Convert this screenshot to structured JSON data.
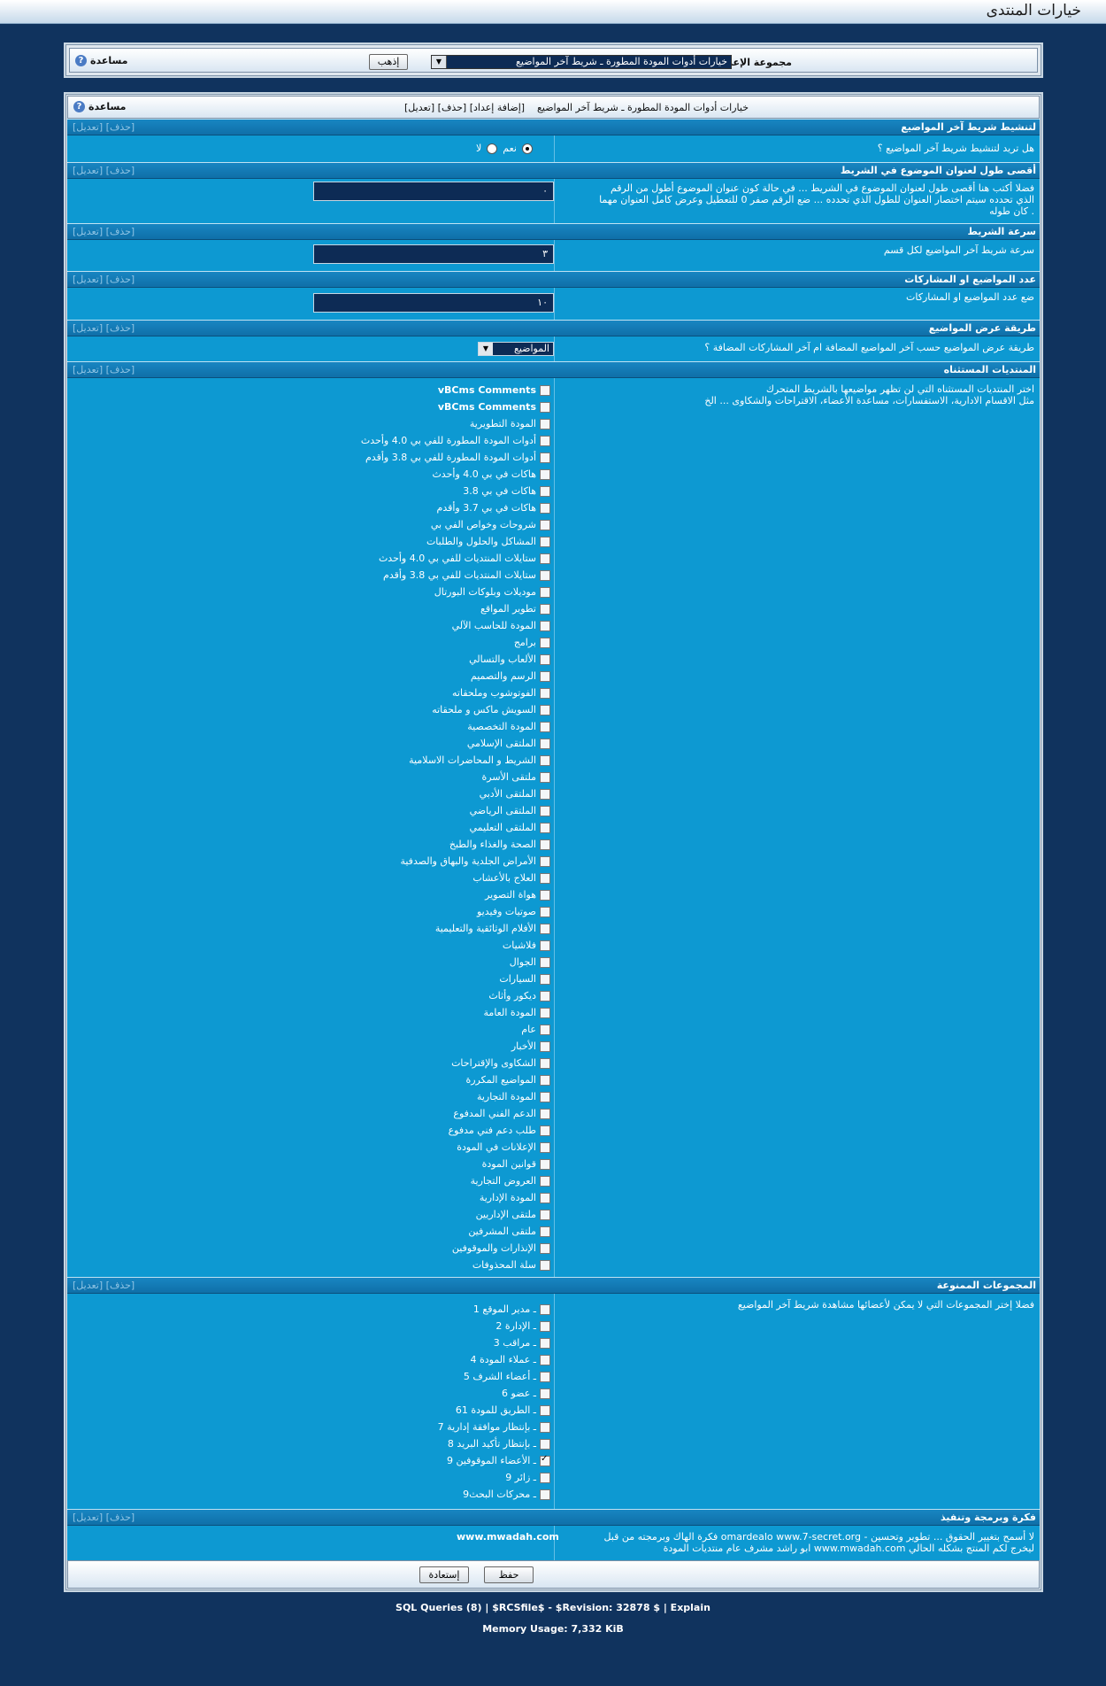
{
  "page_title": "خيارات المنتدى",
  "help_label": "مساعدة",
  "group": {
    "label": "مجموعة الإعداد",
    "selected": "خيارات أدوات المودة المطورة ـ شريط آخر المواضيع",
    "go_label": "إذهب"
  },
  "options_header": {
    "title": "خيارات أدوات المودة المطورة ـ شريط آخر المواضيع",
    "links": "[تعديل] [حذف] [إضافة إعداد]"
  },
  "section_links": "[تعديل] [حذف]",
  "sections": {
    "activate": {
      "title": "لتنشيط شريط آخر المواضيع",
      "desc": "هل تريد لتنشيط شريط آخر المواضيع ؟",
      "yes": "نعم",
      "no": "لا"
    },
    "maxlen": {
      "title": "أقصى طول لعنوان الموضوع في الشريط",
      "desc1": "فضلا أكتب هنا أقصى طول لعنوان الموضوع في الشريط ... في حالة كون عنوان الموضوع أطول من الرقم",
      "desc2": "الذي تحدده سيتم اختصار العنوان للطول الذي تحدده ... ضع الرقم صفر 0 للتعطيل وعرض كامل العنوان مهما",
      "desc3": "كان طوله .",
      "value": "٠"
    },
    "speed": {
      "title": "سرعة الشريط",
      "desc": "سرعة شريط آخر المواضيع لكل قسم",
      "value": "٣"
    },
    "count": {
      "title": "عدد المواضيع او المشاركات",
      "desc": "ضع عدد المواضيع او المشاركات",
      "value": "١٠"
    },
    "display": {
      "title": "طريقة عرض المواضيع",
      "desc": "طريقة عرض المواضيع حسب آخر المواضيع المضافة ام آخر المشاركات المضافة ؟",
      "value": "المواضيع"
    },
    "excluded": {
      "title": "المنتديات المستثناه",
      "desc1": "اختر المنتديات المستثناه التي لن تظهر مواضيعها بالشريط المتحرك",
      "desc2": "مثل الاقسام الادارية، الاستفسارات، مساعدة الأعضاء، الاقتراحات والشكاوى ... الخ"
    },
    "groups": {
      "title": "المجموعات الممنوعة",
      "desc": "فضلا إختر المجموعات التي لا يمكن لأعضائها مشاهدة شريط آخر المواضيع"
    },
    "credits": {
      "title": "فكرة وبرمجة وتنفيذ",
      "desc1": "فكرة الهاك وبرمجته من قبل omardealo www.7-secret.org - لا أسمح بتغيير الحقوق ... تطوير وتحسين",
      "desc2": "ابو راشد مشرف عام منتديات المودة www.mwadah.com ليخرج لكم المنتج بشكله الحالي",
      "value": "www.mwadah.com"
    }
  },
  "forums": [
    {
      "label": "vBCms Comments",
      "bold": true,
      "checked": false
    },
    {
      "label": "vBCms Comments",
      "bold": true,
      "checked": false
    },
    {
      "label": "المودة التطويرية",
      "checked": false
    },
    {
      "label": "أدوات المودة المطورة للفي بي 4.0 وأحدث",
      "checked": false
    },
    {
      "label": "أدوات المودة المطورة للفي بي 3.8 وأقدم",
      "checked": false
    },
    {
      "label": "هاكات في بي 4.0 وأحدث",
      "checked": false
    },
    {
      "label": "هاكات في بي 3.8",
      "checked": false
    },
    {
      "label": "هاكات في بي 3.7 وأقدم",
      "checked": false
    },
    {
      "label": "شروحات وخواص الفي بي",
      "checked": false
    },
    {
      "label": "المشاكل والحلول والطلبات",
      "checked": false
    },
    {
      "label": "ستايلات المنتديات للفي بي 4.0 وأحدث",
      "checked": false
    },
    {
      "label": "ستايلات المنتديات للفي بي 3.8 وأقدم",
      "checked": false
    },
    {
      "label": "موديلات وبلوكات البورتال",
      "checked": false
    },
    {
      "label": "تطوير المواقع",
      "checked": false
    },
    {
      "label": "المودة للحاسب الآلي",
      "checked": false
    },
    {
      "label": "برامج",
      "checked": false
    },
    {
      "label": "الألعاب والتسالي",
      "checked": false
    },
    {
      "label": "الرسم والتصميم",
      "checked": false
    },
    {
      "label": "الفوتوشوب وملحقاته",
      "checked": false
    },
    {
      "label": "السويش ماكس و ملحقاته",
      "checked": false
    },
    {
      "label": "المودة التخصصية",
      "checked": false
    },
    {
      "label": "الملتقى الإسلامي",
      "checked": false
    },
    {
      "label": "الشريط و المحاضرات الاسلامية",
      "checked": false
    },
    {
      "label": "ملتقى الأسرة",
      "checked": false
    },
    {
      "label": "الملتقى الأدبي",
      "checked": false
    },
    {
      "label": "الملتقى الرياضي",
      "checked": false
    },
    {
      "label": "الملتقى التعليمي",
      "checked": false
    },
    {
      "label": "الصحة والغذاء والطبخ",
      "checked": false
    },
    {
      "label": "الأمراض الجلدية والبهاق والصدفية",
      "checked": false
    },
    {
      "label": "العلاج بالأعشاب",
      "checked": false
    },
    {
      "label": "هواة التصوير",
      "checked": false
    },
    {
      "label": "صوتيات وفيديو",
      "checked": false
    },
    {
      "label": "الأفلام الوثائقية والتعليمية",
      "checked": false
    },
    {
      "label": "فلاشيات",
      "checked": false
    },
    {
      "label": "الجوال",
      "checked": false
    },
    {
      "label": "السيارات",
      "checked": false
    },
    {
      "label": "ديكور وأثاث",
      "checked": false
    },
    {
      "label": "المودة العامة",
      "checked": false
    },
    {
      "label": "عام",
      "checked": false
    },
    {
      "label": "الأخبار",
      "checked": false
    },
    {
      "label": "الشكاوى والإقتراحات",
      "checked": false
    },
    {
      "label": "المواضيع المكررة",
      "checked": false
    },
    {
      "label": "المودة التجارية",
      "checked": false
    },
    {
      "label": "الدعم الفني المدفوع",
      "checked": false
    },
    {
      "label": "طلب دعم فني مدفوع",
      "checked": false
    },
    {
      "label": "الإعلانات في المودة",
      "checked": false
    },
    {
      "label": "قوانين المودة",
      "checked": false
    },
    {
      "label": "العروض التجارية",
      "checked": false
    },
    {
      "label": "المودة الإدارية",
      "checked": false
    },
    {
      "label": "ملتقى الإداريين",
      "checked": false
    },
    {
      "label": "ملتقى المشرفين",
      "checked": false
    },
    {
      "label": "الإنذارات والموقوفين",
      "checked": false
    },
    {
      "label": "سلة المحذوفات",
      "checked": false
    }
  ],
  "groups": [
    {
      "label": "1 ـ مدير الموقع",
      "checked": false
    },
    {
      "label": "2 ـ الإدارة",
      "checked": false
    },
    {
      "label": "3 ـ مراقب",
      "checked": false
    },
    {
      "label": "4 ـ عملاء المودة",
      "checked": false
    },
    {
      "label": "5 ـ أعضاء الشرف",
      "checked": false
    },
    {
      "label": "6 ـ عضو",
      "checked": false
    },
    {
      "label": "61 ـ الطريق للمودة",
      "checked": false
    },
    {
      "label": "7 ـ بإنتظار موافقة إدارية",
      "checked": false
    },
    {
      "label": "8 ـ بإنتظار تأكيد البريد",
      "checked": false
    },
    {
      "label": "9 ـ الأعضاء الموقوفين",
      "checked": true
    },
    {
      "label": "9 ـ زائر",
      "checked": false
    },
    {
      "label": "9ـ محركات البحث",
      "checked": false
    }
  ],
  "buttons": {
    "save": "حفظ",
    "reset": "إستعادة"
  },
  "footer": {
    "line1": "SQL Queries (8) | $RCSfile$ - $Revision: 32878 $ | Explain",
    "line2": "Memory Usage: 7,332 KiB"
  }
}
